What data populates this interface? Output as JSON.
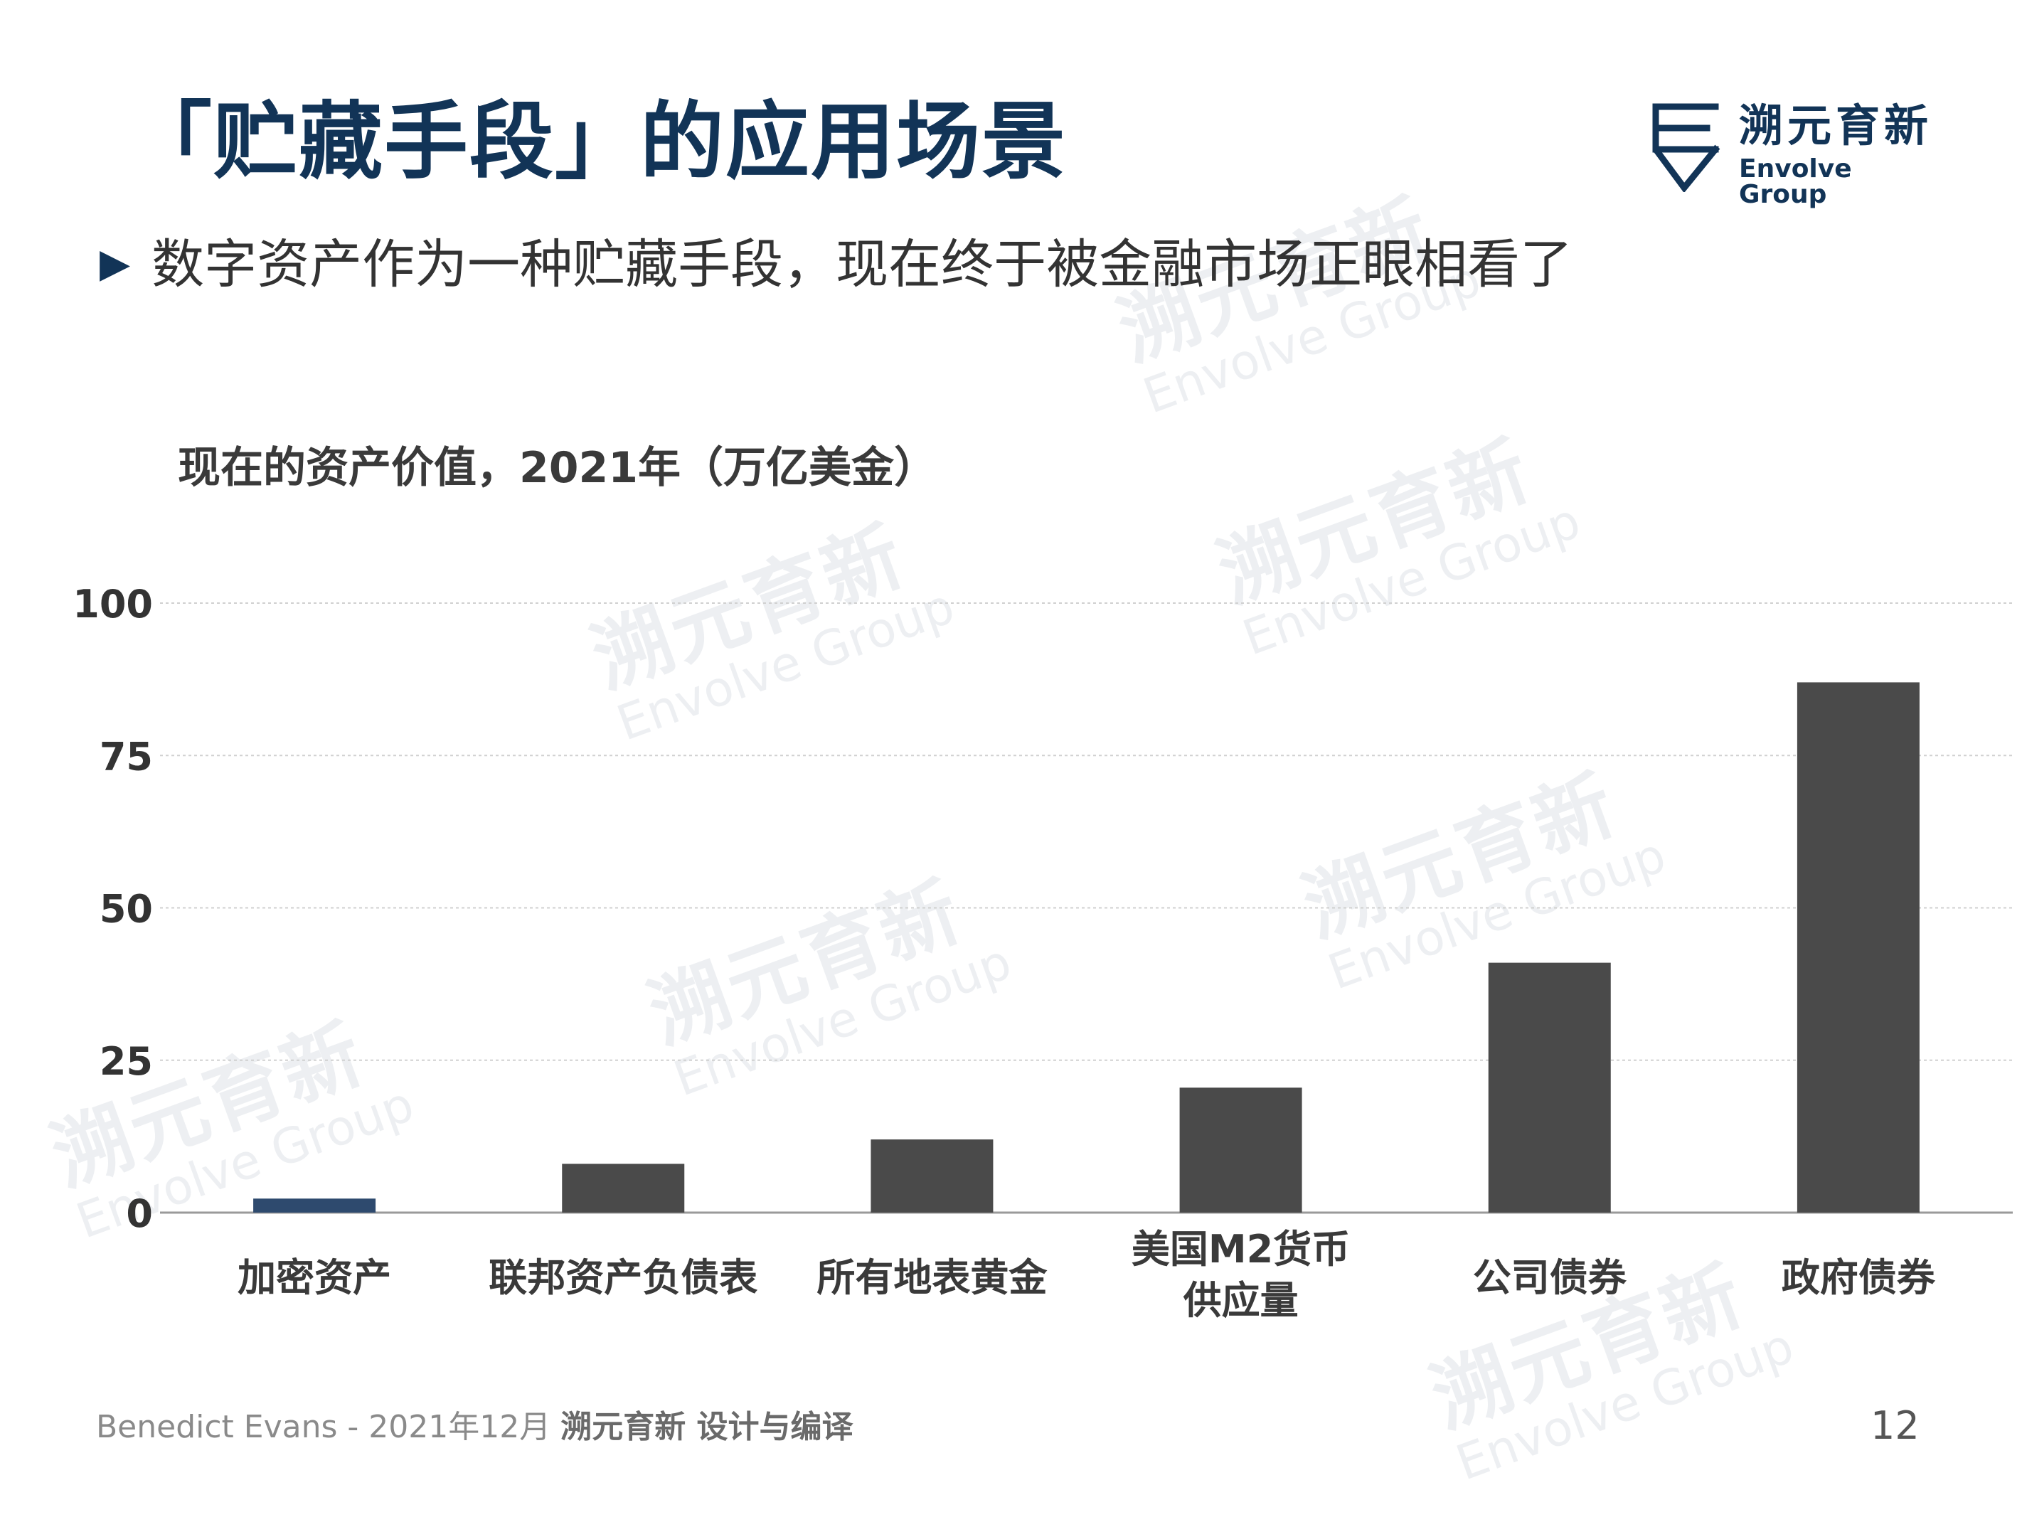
{
  "header": {
    "title": "「贮藏手段」的应用场景",
    "bullet_text": "数字资产作为一种贮藏手段，现在终于被金融市场正眼相看了"
  },
  "logo": {
    "name_zh": "溯元育新",
    "name_en": "Envolve Group"
  },
  "watermark": {
    "text_zh": "溯元育新",
    "text_en": "Envolve Group"
  },
  "chart_data": {
    "type": "bar",
    "title": "现在的资产价值，2021年（万亿美金）",
    "categories": [
      "加密资产",
      "联邦资产负债表",
      "所有地表黄金",
      "美国M2货币供应量",
      "公司债券",
      "政府债券"
    ],
    "category_label_lines": [
      [
        "加密资产"
      ],
      [
        "联邦资产负债表"
      ],
      [
        "所有地表黄金"
      ],
      [
        "美国M2货币",
        "供应量"
      ],
      [
        "公司债券"
      ],
      [
        "政府债券"
      ]
    ],
    "values": [
      2.3,
      8,
      12,
      20.5,
      41,
      87
    ],
    "bar_colors": [
      "#2e4a6e",
      "#4a4a4a",
      "#4a4a4a",
      "#4a4a4a",
      "#4a4a4a",
      "#4a4a4a"
    ],
    "ylim": [
      0,
      100
    ],
    "yticks": [
      0,
      25,
      50,
      75,
      100
    ],
    "grid": true,
    "xlabel": "",
    "ylabel": ""
  },
  "footer": {
    "source_prefix": "Benedict Evans - 2021年12月 ",
    "source_brand": "溯元育新 设计与编译",
    "page_number": "12"
  },
  "colors": {
    "title": "#123457",
    "bar_default": "#4a4a4a",
    "bar_highlight": "#2e4a6e",
    "gridline": "#d0d0d0"
  }
}
